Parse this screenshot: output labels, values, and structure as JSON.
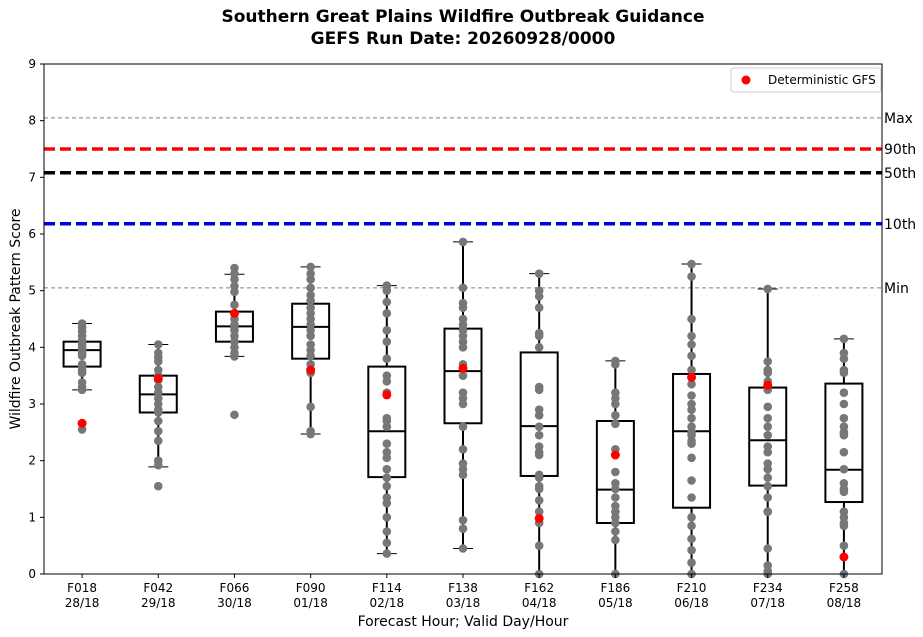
{
  "chart_data": {
    "type": "box",
    "title": "Southern Great Plains Wildfire Outbreak Guidance",
    "subtitle": "GEFS Run Date: 20260928/0000",
    "xlabel": "Forecast Hour; Valid Day/Hour",
    "ylabel": "Wildfire Outbreak Pattern Score",
    "ylim": [
      0,
      9
    ],
    "yticks": [
      "0",
      "1",
      "2",
      "3",
      "4",
      "5",
      "6",
      "7",
      "8",
      "9"
    ],
    "categories": [
      {
        "hour": "F018",
        "valid": "28/18"
      },
      {
        "hour": "F042",
        "valid": "29/18"
      },
      {
        "hour": "F066",
        "valid": "30/18"
      },
      {
        "hour": "F090",
        "valid": "01/18"
      },
      {
        "hour": "F114",
        "valid": "02/18"
      },
      {
        "hour": "F138",
        "valid": "03/18"
      },
      {
        "hour": "F162",
        "valid": "04/18"
      },
      {
        "hour": "F186",
        "valid": "05/18"
      },
      {
        "hour": "F210",
        "valid": "06/18"
      },
      {
        "hour": "F234",
        "valid": "07/18"
      },
      {
        "hour": "F258",
        "valid": "08/18"
      }
    ],
    "boxes": [
      {
        "whisker_low": 3.25,
        "q1": 3.66,
        "median": 3.95,
        "q3": 4.1,
        "whisker_high": 4.42
      },
      {
        "whisker_low": 1.89,
        "q1": 2.85,
        "median": 3.17,
        "q3": 3.5,
        "whisker_high": 4.05
      },
      {
        "whisker_low": 3.84,
        "q1": 4.1,
        "median": 4.37,
        "q3": 4.63,
        "whisker_high": 5.29
      },
      {
        "whisker_low": 2.47,
        "q1": 3.8,
        "median": 4.36,
        "q3": 4.77,
        "whisker_high": 5.42
      },
      {
        "whisker_low": 0.36,
        "q1": 1.71,
        "median": 2.52,
        "q3": 3.66,
        "whisker_high": 5.09
      },
      {
        "whisker_low": 0.45,
        "q1": 2.66,
        "median": 3.58,
        "q3": 4.33,
        "whisker_high": 5.86
      },
      {
        "whisker_low": 0.0,
        "q1": 1.73,
        "median": 2.61,
        "q3": 3.91,
        "whisker_high": 5.3
      },
      {
        "whisker_low": 0.0,
        "q1": 0.9,
        "median": 1.49,
        "q3": 2.7,
        "whisker_high": 3.76
      },
      {
        "whisker_low": 0.0,
        "q1": 1.17,
        "median": 2.52,
        "q3": 3.53,
        "whisker_high": 5.47
      },
      {
        "whisker_low": 0.0,
        "q1": 1.56,
        "median": 2.36,
        "q3": 3.29,
        "whisker_high": 5.03
      },
      {
        "whisker_low": 0.0,
        "q1": 1.27,
        "median": 1.84,
        "q3": 3.36,
        "whisker_high": 4.15
      }
    ],
    "members": [
      [
        4.42,
        4.35,
        4.28,
        4.2,
        4.12,
        4.05,
        3.99,
        3.95,
        3.92,
        3.88,
        3.85,
        3.7,
        3.66,
        3.6,
        3.55,
        3.38,
        3.3,
        3.25,
        2.55
      ],
      [
        4.05,
        3.9,
        3.82,
        3.75,
        3.6,
        3.5,
        3.42,
        3.3,
        3.2,
        3.1,
        3.0,
        2.9,
        2.85,
        2.7,
        2.52,
        2.35,
        2.0,
        1.92,
        1.55
      ],
      [
        5.4,
        5.3,
        5.2,
        5.08,
        4.98,
        4.75,
        4.6,
        4.5,
        4.4,
        4.35,
        4.3,
        4.2,
        4.1,
        4.0,
        3.9,
        3.84,
        2.81
      ],
      [
        5.42,
        5.3,
        5.2,
        5.05,
        4.92,
        4.82,
        4.7,
        4.6,
        4.5,
        4.4,
        4.3,
        4.2,
        4.05,
        3.95,
        3.85,
        3.7,
        3.6,
        3.55,
        2.95,
        2.52,
        2.47
      ],
      [
        5.09,
        5.0,
        4.8,
        4.6,
        4.3,
        4.1,
        3.8,
        3.5,
        3.4,
        3.2,
        2.75,
        2.7,
        2.6,
        2.3,
        2.15,
        2.05,
        1.85,
        1.7,
        1.55,
        1.35,
        1.25,
        1.0,
        0.75,
        0.55,
        0.36
      ],
      [
        5.86,
        5.05,
        4.78,
        4.7,
        4.5,
        4.4,
        4.3,
        4.2,
        4.1,
        4.0,
        3.7,
        3.5,
        3.2,
        3.1,
        3.0,
        2.6,
        2.2,
        1.95,
        1.85,
        1.75,
        0.95,
        0.8,
        0.45
      ],
      [
        5.3,
        5.0,
        4.9,
        4.7,
        4.25,
        4.2,
        4.0,
        3.3,
        3.25,
        2.9,
        2.8,
        2.6,
        2.45,
        2.25,
        2.15,
        2.1,
        1.75,
        1.7,
        1.55,
        1.5,
        1.3,
        1.1,
        0.9,
        0.5,
        0.0
      ],
      [
        3.76,
        3.7,
        3.2,
        3.1,
        3.0,
        2.8,
        2.65,
        2.2,
        2.1,
        1.8,
        1.6,
        1.5,
        1.35,
        1.2,
        1.1,
        1.0,
        0.9,
        0.75,
        0.6,
        0.0
      ],
      [
        5.47,
        5.25,
        4.5,
        4.2,
        4.05,
        3.85,
        3.6,
        3.35,
        3.15,
        3.0,
        2.9,
        2.75,
        2.6,
        2.5,
        2.45,
        2.35,
        2.3,
        2.05,
        1.65,
        1.35,
        1.0,
        0.85,
        0.62,
        0.42,
        0.2,
        0.0
      ],
      [
        5.03,
        3.75,
        3.6,
        3.55,
        3.4,
        3.25,
        2.95,
        2.75,
        2.6,
        2.45,
        2.25,
        2.15,
        1.95,
        1.85,
        1.7,
        1.55,
        1.35,
        1.1,
        1.1,
        0.45,
        0.15,
        0.05,
        0.0
      ],
      [
        4.15,
        3.9,
        3.8,
        3.6,
        3.55,
        3.2,
        3.0,
        2.75,
        2.6,
        2.5,
        2.45,
        2.15,
        1.85,
        1.6,
        1.5,
        1.45,
        1.1,
        1.0,
        0.9,
        0.85,
        0.5,
        0.0
      ]
    ],
    "deterministic": [
      2.66,
      3.45,
      4.6,
      3.6,
      3.16,
      3.63,
      0.98,
      2.1,
      3.47,
      3.33,
      0.3
    ],
    "reference_lines": [
      {
        "label": "Max",
        "value": 8.05,
        "color": "#808080",
        "style": "dashed-thin"
      },
      {
        "label": "90th",
        "value": 7.5,
        "color": "#ff0000",
        "style": "dashed-thick"
      },
      {
        "label": "50th",
        "value": 7.08,
        "color": "#000000",
        "style": "dashed-thick"
      },
      {
        "label": "10th",
        "value": 6.18,
        "color": "#0000dd",
        "style": "dashed-thick"
      },
      {
        "label": "Min",
        "value": 5.05,
        "color": "#808080",
        "style": "dashed-thin"
      }
    ],
    "legend": {
      "label": "Deterministic GFS",
      "position": "top-right"
    },
    "colors": {
      "members": "#777777",
      "deterministic": "#ff0000",
      "box": "#000000"
    },
    "grid": false
  }
}
